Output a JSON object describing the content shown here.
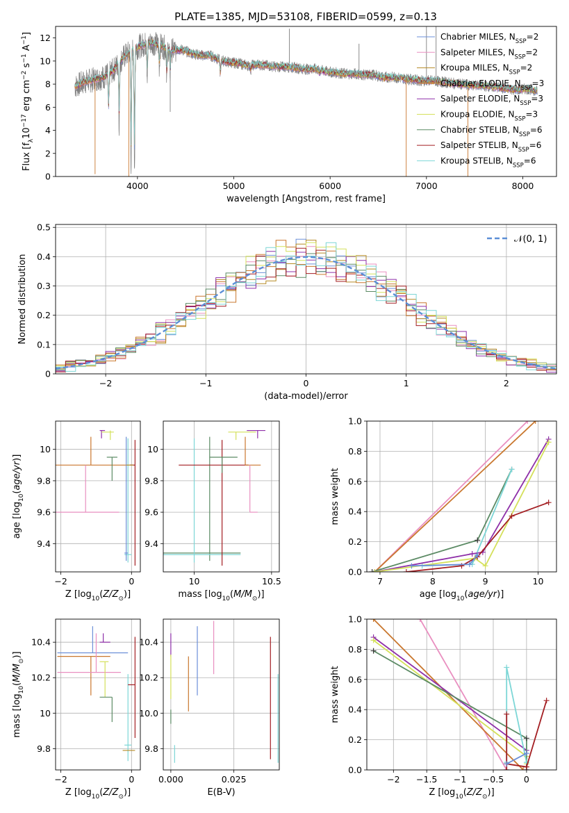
{
  "title": "PLATE=1385, MJD=53108, FIBERID=0599, z=0.13",
  "colors": {
    "c1": "#6b8fd8",
    "c2": "#e98fc0",
    "c3": "#c9772e",
    "c4": "#b58a24",
    "c5": "#8e2fa8",
    "c6": "#d4e05a",
    "c7": "#5b8a64",
    "c8": "#a31e22",
    "c9": "#7cd6d6",
    "spec": "#7f7f7f",
    "normal": "#5b8ed6"
  },
  "legend": [
    {
      "key": "c1",
      "base": "Chabrier MILES, N",
      "sub": "SSP",
      "tail": "=2"
    },
    {
      "key": "c2",
      "base": "Salpeter MILES, N",
      "sub": "SSP",
      "tail": "=2"
    },
    {
      "key": "c4",
      "base": "Kroupa MILES, N",
      "sub": "SSP",
      "tail": "=2"
    },
    {
      "key": "c3",
      "base": "Chabrier ELODIE, N",
      "sub": "SSP",
      "tail": "=3"
    },
    {
      "key": "c5",
      "base": "Salpeter ELODIE, N",
      "sub": "SSP",
      "tail": "=3"
    },
    {
      "key": "c6",
      "base": "Kroupa ELODIE, N",
      "sub": "SSP",
      "tail": "=3"
    },
    {
      "key": "c7",
      "base": "Chabrier STELIB, N",
      "sub": "SSP",
      "tail": "=6"
    },
    {
      "key": "c8",
      "base": "Salpeter STELIB, N",
      "sub": "SSP",
      "tail": "=6"
    },
    {
      "key": "c9",
      "base": "Kroupa STELIB, N",
      "sub": "SSP",
      "tail": "=6"
    }
  ],
  "chart_data": [
    {
      "id": "spectrum",
      "type": "line",
      "xlabel": "wavelength [Angstrom, rest frame]",
      "ylabel": "Flux [f",
      "xlim": [
        3150,
        8350
      ],
      "ylim": [
        0,
        13
      ],
      "xticks": [
        4000,
        5000,
        6000,
        7000,
        8000
      ],
      "yticks": [
        0,
        2,
        4,
        6,
        8,
        10,
        12
      ],
      "continuum": [
        [
          3350,
          7.8
        ],
        [
          3450,
          8.2
        ],
        [
          3550,
          8.4
        ],
        [
          3650,
          8.6
        ],
        [
          3750,
          9.2
        ],
        [
          3850,
          10.3
        ],
        [
          3950,
          11.0
        ],
        [
          4050,
          11.4
        ],
        [
          4150,
          11.6
        ],
        [
          4250,
          11.3
        ],
        [
          4350,
          10.9
        ],
        [
          4450,
          11.0
        ],
        [
          4550,
          10.7
        ],
        [
          4650,
          10.5
        ],
        [
          4750,
          10.5
        ],
        [
          4850,
          10.1
        ],
        [
          4950,
          9.9
        ],
        [
          5050,
          9.8
        ],
        [
          5150,
          9.6
        ],
        [
          5250,
          9.7
        ],
        [
          5350,
          9.6
        ],
        [
          5450,
          9.5
        ],
        [
          5550,
          9.5
        ],
        [
          5650,
          9.4
        ],
        [
          5750,
          9.3
        ],
        [
          5850,
          9.3
        ],
        [
          5950,
          9.1
        ],
        [
          6050,
          9.0
        ],
        [
          6150,
          8.9
        ],
        [
          6250,
          8.9
        ],
        [
          6350,
          8.8
        ],
        [
          6450,
          8.8
        ],
        [
          6550,
          8.6
        ],
        [
          6650,
          8.6
        ],
        [
          6750,
          8.5
        ],
        [
          6850,
          8.4
        ],
        [
          6950,
          8.3
        ],
        [
          7050,
          8.3
        ],
        [
          7150,
          8.2
        ],
        [
          7250,
          8.1
        ],
        [
          7350,
          8.0
        ],
        [
          7450,
          7.9
        ],
        [
          7550,
          7.9
        ],
        [
          7650,
          7.8
        ],
        [
          7750,
          7.7
        ],
        [
          7850,
          7.6
        ],
        [
          7950,
          7.5
        ],
        [
          8050,
          7.6
        ],
        [
          8150,
          7.4
        ]
      ],
      "absorption": [
        [
          3934,
          0.5
        ],
        [
          3969,
          0.3
        ],
        [
          3810,
          4.5
        ],
        [
          3700,
          5.5
        ],
        [
          4102,
          8.5
        ],
        [
          4227,
          9.5
        ],
        [
          4305,
          8.6
        ],
        [
          4340,
          9.0
        ],
        [
          4861,
          8.8
        ],
        [
          5175,
          9.2
        ],
        [
          5890,
          8.9
        ],
        [
          6563,
          8.5
        ]
      ],
      "spikes": [
        [
          3560,
          0.2
        ],
        [
          3910,
          0.0
        ],
        [
          4340,
          5.6
        ],
        [
          6790,
          0.0
        ],
        [
          7430,
          0.0
        ],
        [
          5577,
          12.8
        ],
        [
          6300,
          11.5
        ],
        [
          7100,
          13.0
        ],
        [
          7000,
          13.0
        ]
      ]
    },
    {
      "id": "residuals",
      "type": "step",
      "xlabel": "(data-model)/error",
      "ylabel": "Normed distribution",
      "xlim": [
        -2.5,
        2.5
      ],
      "ylim": [
        0,
        0.51
      ],
      "xticks": [
        -2,
        -1,
        0,
        1,
        2
      ],
      "yticks": [
        0,
        0.1,
        0.2,
        0.3,
        0.4,
        0.5
      ],
      "bin_width": 0.1,
      "legend_label": "𝒩(0, 1)"
    },
    {
      "id": "z_age",
      "type": "errorbar",
      "xlabel": "Z [log",
      "xlabel_sub": "10",
      "xlabel_tail": "(Z/Z",
      "ylabel": "age  [log",
      "xlim": [
        -2.15,
        0.25
      ],
      "ylim": [
        9.22,
        10.18
      ],
      "xticks": [
        -2,
        0
      ],
      "yticks": [
        9.4,
        9.6,
        9.8,
        10.0
      ],
      "points": [
        {
          "key": "c3",
          "x": -1.15,
          "xe": [
            1.0,
            1.0
          ],
          "y": 9.9,
          "ye": [
            0.0,
            0.18
          ]
        },
        {
          "key": "c2",
          "x": -1.3,
          "xe": [
            0.9,
            0.95
          ],
          "y": 9.6,
          "ye": [
            0.0,
            0.3
          ]
        },
        {
          "key": "c7",
          "x": -0.55,
          "xe": [
            0.15,
            0.15
          ],
          "y": 9.95,
          "ye": [
            0.15,
            0.0
          ]
        },
        {
          "key": "c5",
          "x": -0.85,
          "xe": [
            0.05,
            0.1
          ],
          "y": 10.12,
          "ye": [
            0.05,
            0.0
          ]
        },
        {
          "key": "c6",
          "x": -0.6,
          "xe": [
            0.25,
            0.1
          ],
          "y": 10.11,
          "ye": [
            0.05,
            0.01
          ]
        },
        {
          "key": "c9",
          "x": -0.1,
          "xe": [
            0.1,
            0.1
          ],
          "y": 9.33,
          "ye": [
            0.05,
            0.74
          ]
        },
        {
          "key": "c1",
          "x": -0.15,
          "xe": [
            0.05,
            0.05
          ],
          "y": 9.34,
          "ye": [
            0.05,
            0.74
          ]
        },
        {
          "key": "c8",
          "x": 0.1,
          "xe": [
            0.15,
            0.0
          ],
          "y": 9.9,
          "ye": [
            0.64,
            0.16
          ]
        },
        {
          "key": "c4",
          "x": -0.05,
          "xe": [
            0.1,
            0.1
          ],
          "y": 9.9,
          "ye": [
            0.0,
            0.0
          ]
        }
      ]
    },
    {
      "id": "mass_age",
      "type": "errorbar",
      "xlabel": "mass [log",
      "ylabel": "",
      "xlim": [
        9.8,
        10.55
      ],
      "ylim": [
        9.22,
        10.18
      ],
      "xticks": [
        10.0,
        10.5
      ],
      "yticks": [
        9.4,
        9.6,
        9.8,
        10.0
      ],
      "points": [
        {
          "key": "c7",
          "x": 10.1,
          "xe": [
            0.38,
            0.2
          ],
          "y": 9.34,
          "ye": [
            0.05,
            0.74
          ]
        },
        {
          "key": "c9",
          "x": 10.0,
          "xe": [
            0.3,
            0.3
          ],
          "y": 9.33,
          "ye": [
            0.05,
            0.74
          ]
        },
        {
          "key": "c8",
          "x": 10.18,
          "xe": [
            0.28,
            0.17
          ],
          "y": 9.9,
          "ye": [
            0.64,
            0.16
          ]
        },
        {
          "key": "c7",
          "x": 10.18,
          "xe": [
            0.08,
            0.1
          ],
          "y": 9.95,
          "ye": [
            0.1,
            0.0
          ]
        },
        {
          "key": "c3",
          "x": 10.33,
          "xe": [
            0.0,
            0.1
          ],
          "y": 9.9,
          "ye": [
            0.0,
            0.18
          ]
        },
        {
          "key": "c2",
          "x": 10.36,
          "xe": [
            0.0,
            0.05
          ],
          "y": 9.6,
          "ye": [
            0.0,
            0.3
          ]
        },
        {
          "key": "c6",
          "x": 10.27,
          "xe": [
            0.05,
            0.13
          ],
          "y": 10.11,
          "ye": [
            0.05,
            0.0
          ]
        },
        {
          "key": "c5",
          "x": 10.41,
          "xe": [
            0.07,
            0.05
          ],
          "y": 10.12,
          "ye": [
            0.05,
            0.0
          ]
        }
      ]
    },
    {
      "id": "age_weight",
      "type": "line",
      "xlabel": "age  [log",
      "ylabel": "mass weight",
      "xlim": [
        6.75,
        10.35
      ],
      "ylim": [
        0,
        1
      ],
      "xticks": [
        7,
        8,
        9,
        10
      ],
      "yticks": [
        0,
        0.2,
        0.4,
        0.6,
        0.8,
        1.0
      ],
      "series": [
        {
          "key": "c2",
          "x": [
            6.9,
            9.8
          ],
          "y": [
            0.0,
            1.0
          ]
        },
        {
          "key": "c3",
          "x": [
            6.9,
            9.95
          ],
          "y": [
            0.0,
            1.0
          ]
        },
        {
          "key": "c7",
          "x": [
            6.85,
            8.85,
            9.5
          ],
          "y": [
            0.0,
            0.21,
            0.68
          ]
        },
        {
          "key": "c9",
          "x": [
            7.8,
            8.75,
            9.5
          ],
          "y": [
            0.04,
            0.05,
            0.68
          ]
        },
        {
          "key": "c5",
          "x": [
            6.9,
            8.75,
            8.95,
            10.2
          ],
          "y": [
            0.0,
            0.12,
            0.13,
            0.88
          ]
        },
        {
          "key": "c6",
          "x": [
            6.9,
            8.8,
            9.0,
            10.2
          ],
          "y": [
            0.0,
            0.09,
            0.04,
            0.86
          ]
        },
        {
          "key": "c8",
          "x": [
            7.5,
            8.55,
            8.85,
            9.5,
            10.2
          ],
          "y": [
            0.0,
            0.04,
            0.1,
            0.37,
            0.46
          ]
        },
        {
          "key": "c1",
          "x": [
            7.6,
            8.7,
            8.85
          ],
          "y": [
            0.04,
            0.05,
            0.11
          ]
        }
      ]
    },
    {
      "id": "z_mass",
      "type": "errorbar",
      "xlabel": "Z [log",
      "ylabel": "mass [log",
      "xlim": [
        -2.15,
        0.25
      ],
      "ylim": [
        9.68,
        10.53
      ],
      "xticks": [
        -2,
        0
      ],
      "yticks": [
        9.8,
        10.0,
        10.2,
        10.4
      ],
      "points": [
        {
          "key": "c1",
          "x": -1.1,
          "xe": [
            1.0,
            1.0
          ],
          "y": 10.34,
          "ye": [
            0.0,
            0.15
          ]
        },
        {
          "key": "c3",
          "x": -1.15,
          "xe": [
            0.95,
            0.55
          ],
          "y": 10.32,
          "ye": [
            0.22,
            0.0
          ]
        },
        {
          "key": "c2",
          "x": -1.0,
          "xe": [
            1.1,
            0.7
          ],
          "y": 10.23,
          "ye": [
            0.0,
            0.22
          ]
        },
        {
          "key": "c5",
          "x": -0.8,
          "xe": [
            0.1,
            0.2
          ],
          "y": 10.4,
          "ye": [
            0.0,
            0.05
          ]
        },
        {
          "key": "c6",
          "x": -0.75,
          "xe": [
            0.15,
            0.1
          ],
          "y": 10.29,
          "ye": [
            0.2,
            0.0
          ]
        },
        {
          "key": "c7",
          "x": -0.55,
          "xe": [
            0.35,
            0.0
          ],
          "y": 10.09,
          "ye": [
            0.14,
            0.0
          ]
        },
        {
          "key": "c9",
          "x": -0.1,
          "xe": [
            0.1,
            0.1
          ],
          "y": 9.82,
          "ye": [
            0.09,
            0.4
          ]
        },
        {
          "key": "c8",
          "x": 0.1,
          "xe": [
            0.2,
            0.0
          ],
          "y": 10.16,
          "ye": [
            0.3,
            0.27
          ]
        },
        {
          "key": "c4",
          "x": -0.05,
          "xe": [
            0.2,
            0.15
          ],
          "y": 9.79,
          "ye": [
            0.0,
            0.0
          ]
        }
      ]
    },
    {
      "id": "ebv_mass",
      "type": "errorbar",
      "xlabel": "E(B-V)",
      "ylabel": "",
      "xlim": [
        -0.003,
        0.043
      ],
      "ylim": [
        9.68,
        10.53
      ],
      "xticks": [
        0.0,
        0.025
      ],
      "yticks": [
        9.8,
        10.0,
        10.2,
        10.4
      ],
      "points": [
        {
          "key": "c7",
          "x": 0.0,
          "ye": [
            0.08,
            0.0
          ],
          "y": 10.02
        },
        {
          "key": "c5",
          "x": 0.0,
          "ye": [
            0.0,
            0.13
          ],
          "y": 10.32
        },
        {
          "key": "c6",
          "x": 0.0,
          "ye": [
            0.25,
            0.0
          ],
          "y": 10.33
        },
        {
          "key": "c3",
          "x": 0.007,
          "ye": [
            0.22,
            0.09
          ],
          "y": 10.23
        },
        {
          "key": "c1",
          "x": 0.0105,
          "ye": [
            0.15,
            0.24
          ],
          "y": 10.25
        },
        {
          "key": "c2",
          "x": 0.017,
          "ye": [
            0.08,
            0.22
          ],
          "y": 10.3
        },
        {
          "key": "c9",
          "x": 0.0015,
          "ye": [
            0.1,
            0.0
          ],
          "y": 9.82
        },
        {
          "key": "c8",
          "x": 0.0395,
          "ye": [
            0.69,
            0.0
          ],
          "y": 10.43
        },
        {
          "key": "c9",
          "x": 0.0425,
          "ye": [
            0.5,
            0.0
          ],
          "y": 10.22
        }
      ]
    },
    {
      "id": "z_weight",
      "type": "line",
      "xlabel": "Z [log",
      "ylabel": "mass weight",
      "xlim": [
        -2.4,
        0.45
      ],
      "ylim": [
        0,
        1
      ],
      "xticks": [
        -2.0,
        -1.5,
        -1.0,
        -0.5,
        0.0
      ],
      "yticks": [
        0,
        0.2,
        0.4,
        0.6,
        0.8,
        1.0
      ],
      "series": [
        {
          "key": "c2",
          "x": [
            -1.6,
            -0.3
          ],
          "y": [
            1.0,
            0.0
          ]
        },
        {
          "key": "c3",
          "x": [
            -2.3,
            -0.05
          ],
          "y": [
            1.0,
            0.0
          ]
        },
        {
          "key": "c5",
          "x": [
            -2.3,
            0.0,
            0.0
          ],
          "y": [
            0.88,
            0.13,
            0.0
          ]
        },
        {
          "key": "c6",
          "x": [
            -2.3,
            0.0,
            0.0
          ],
          "y": [
            0.86,
            0.09,
            0.04
          ]
        },
        {
          "key": "c7",
          "x": [
            -2.3,
            0.0,
            0.0
          ],
          "y": [
            0.79,
            0.21,
            0.0
          ]
        },
        {
          "key": "c9",
          "x": [
            -0.3,
            -0.3,
            0.0
          ],
          "y": [
            0.05,
            0.68,
            0.05
          ]
        },
        {
          "key": "c8",
          "x": [
            -0.3,
            0.0,
            0.3
          ],
          "y": [
            0.04,
            0.02,
            0.46
          ]
        },
        {
          "key": "c8",
          "x": [
            -0.3,
            -0.3
          ],
          "y": [
            0.37,
            0.0
          ]
        },
        {
          "key": "c1",
          "x": [
            -0.3,
            0.0
          ],
          "y": [
            0.04,
            0.11
          ]
        }
      ]
    }
  ]
}
